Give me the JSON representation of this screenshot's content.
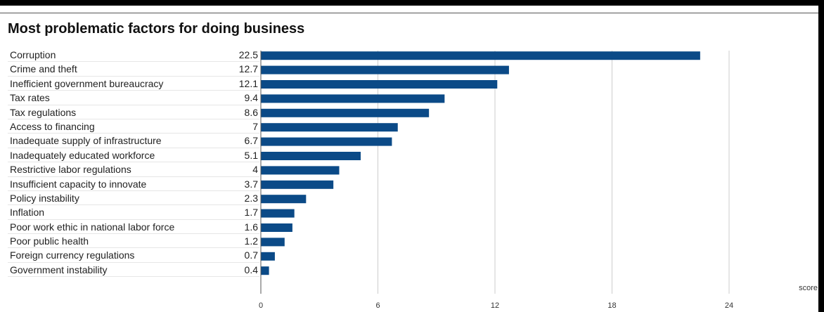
{
  "chart_data": {
    "type": "bar",
    "orientation": "horizontal",
    "title": "Most problematic factors for doing business",
    "xlabel": "score",
    "ylabel": "",
    "xlim": [
      0,
      24
    ],
    "xticks": [
      0,
      6,
      12,
      18,
      24
    ],
    "grid": true,
    "bar_color": "#0b4a87",
    "categories": [
      "Corruption",
      "Crime and theft",
      "Inefficient government bureaucracy",
      "Tax rates",
      "Tax regulations",
      "Access to financing",
      "Inadequate supply of infrastructure",
      "Inadequately educated workforce",
      "Restrictive labor regulations",
      "Insufficient capacity to innovate",
      "Policy instability",
      "Inflation",
      "Poor work ethic in national labor force",
      "Poor public health",
      "Foreign currency regulations",
      "Government instability"
    ],
    "values": [
      22.5,
      12.7,
      12.1,
      9.4,
      8.6,
      7,
      6.7,
      5.1,
      4,
      3.7,
      2.3,
      1.7,
      1.6,
      1.2,
      0.7,
      0.4
    ]
  }
}
